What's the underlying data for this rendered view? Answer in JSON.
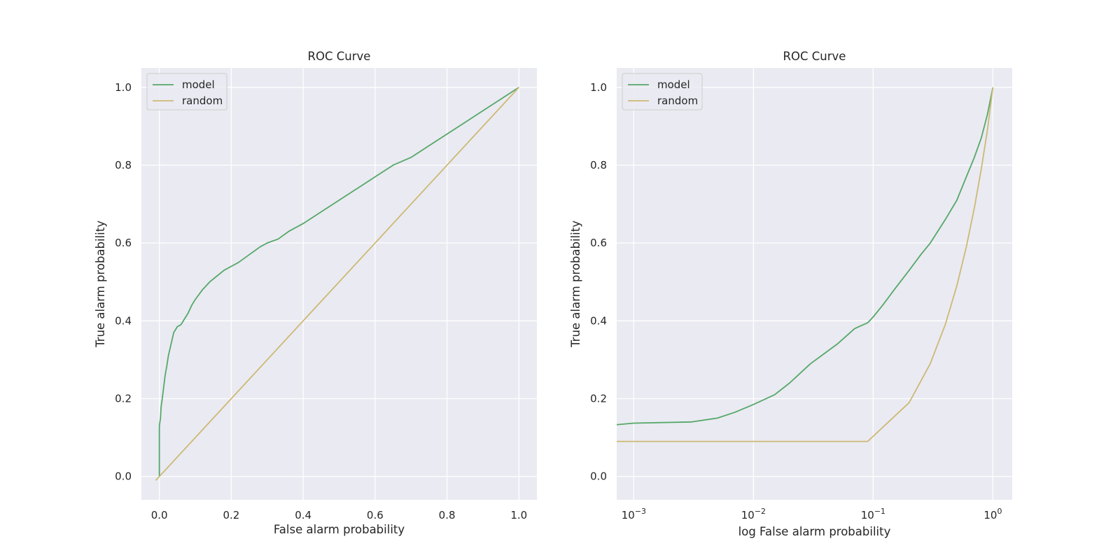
{
  "chart_data": [
    {
      "type": "line",
      "title": "ROC Curve",
      "xlabel": "False alarm probability",
      "ylabel": "True alarm probability",
      "xscale": "linear",
      "xlim": [
        -0.05,
        1.05
      ],
      "ylim": [
        -0.06,
        1.05
      ],
      "xticks": [
        0.0,
        0.2,
        0.4,
        0.6,
        0.8,
        1.0
      ],
      "xtick_labels": [
        "0.0",
        "0.2",
        "0.4",
        "0.6",
        "0.8",
        "1.0"
      ],
      "yticks": [
        0.0,
        0.2,
        0.4,
        0.6,
        0.8,
        1.0
      ],
      "ytick_labels": [
        "0.0",
        "0.2",
        "0.4",
        "0.6",
        "0.8",
        "1.0"
      ],
      "grid": true,
      "legend": "top-left",
      "series": [
        {
          "name": "model",
          "color": "#55a868",
          "x": [
            0.0,
            0.0,
            0.003,
            0.005,
            0.008,
            0.012,
            0.016,
            0.02,
            0.025,
            0.03,
            0.035,
            0.04,
            0.05,
            0.06,
            0.07,
            0.08,
            0.09,
            0.1,
            0.12,
            0.14,
            0.16,
            0.18,
            0.2,
            0.22,
            0.25,
            0.28,
            0.3,
            0.33,
            0.36,
            0.4,
            0.45,
            0.5,
            0.55,
            0.6,
            0.65,
            0.7,
            0.75,
            0.8,
            0.85,
            0.9,
            0.95,
            1.0
          ],
          "y": [
            0.0,
            0.13,
            0.15,
            0.18,
            0.2,
            0.23,
            0.26,
            0.28,
            0.31,
            0.33,
            0.35,
            0.37,
            0.385,
            0.39,
            0.405,
            0.42,
            0.44,
            0.455,
            0.48,
            0.5,
            0.515,
            0.53,
            0.54,
            0.55,
            0.57,
            0.59,
            0.6,
            0.61,
            0.63,
            0.65,
            0.68,
            0.71,
            0.74,
            0.77,
            0.8,
            0.82,
            0.85,
            0.88,
            0.91,
            0.94,
            0.97,
            1.0
          ]
        },
        {
          "name": "random",
          "color": "#ccb974",
          "x": [
            -0.01,
            1.0
          ],
          "y": [
            -0.01,
            1.0
          ]
        }
      ]
    },
    {
      "type": "line",
      "title": "ROC Curve",
      "xlabel": "log False alarm probability",
      "ylabel": "True alarm probability",
      "xscale": "log",
      "xlim": [
        0.00072,
        1.45
      ],
      "ylim": [
        -0.06,
        1.05
      ],
      "xticks": [
        0.001,
        0.01,
        0.1,
        1
      ],
      "xtick_labels": [
        "10",
        "10",
        "10",
        "10"
      ],
      "xtick_exponents": [
        "−3",
        "−2",
        "−1",
        "0"
      ],
      "yticks": [
        0.0,
        0.2,
        0.4,
        0.6,
        0.8,
        1.0
      ],
      "ytick_labels": [
        "0.0",
        "0.2",
        "0.4",
        "0.6",
        "0.8",
        "1.0"
      ],
      "grid": true,
      "legend": "top-left",
      "series": [
        {
          "name": "model",
          "color": "#55a868",
          "x": [
            0.00072,
            0.001,
            0.003,
            0.005,
            0.007,
            0.01,
            0.015,
            0.02,
            0.03,
            0.05,
            0.07,
            0.09,
            0.1,
            0.12,
            0.15,
            0.2,
            0.25,
            0.3,
            0.4,
            0.5,
            0.6,
            0.7,
            0.8,
            0.9,
            1.0
          ],
          "y": [
            0.133,
            0.137,
            0.14,
            0.15,
            0.165,
            0.185,
            0.21,
            0.24,
            0.29,
            0.34,
            0.38,
            0.395,
            0.41,
            0.44,
            0.48,
            0.53,
            0.57,
            0.6,
            0.66,
            0.71,
            0.77,
            0.82,
            0.87,
            0.93,
            1.0
          ]
        },
        {
          "name": "random",
          "color": "#ccb974",
          "x": [
            0.00072,
            0.09,
            0.2,
            0.3,
            0.4,
            0.5,
            0.6,
            0.7,
            0.8,
            0.9,
            1.0
          ],
          "y": [
            0.09,
            0.09,
            0.19,
            0.29,
            0.39,
            0.49,
            0.59,
            0.69,
            0.79,
            0.89,
            1.0
          ]
        }
      ]
    }
  ]
}
